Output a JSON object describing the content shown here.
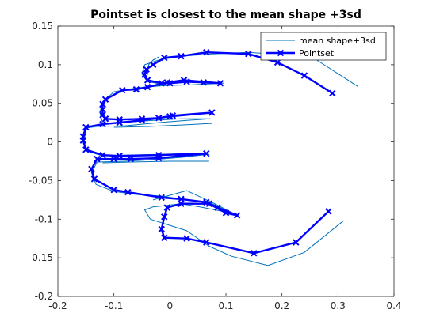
{
  "chart_data": {
    "type": "line",
    "title": "Pointset is closest to the mean shape +3sd",
    "xlabel": "",
    "ylabel": "",
    "xlim": [
      -0.2,
      0.4
    ],
    "ylim": [
      -0.2,
      0.15
    ],
    "x_ticks": [
      -0.2,
      -0.1,
      0,
      0.1,
      0.2,
      0.3,
      0.4
    ],
    "x_tick_labels": [
      "-0.2",
      "-0.1",
      "0",
      "0.1",
      "0.2",
      "0.3",
      "0.4"
    ],
    "y_ticks": [
      -0.2,
      -0.15,
      -0.1,
      -0.05,
      0,
      0.05,
      0.1,
      0.15
    ],
    "y_tick_labels": [
      "-0.2",
      "-0.15",
      "-0.1",
      "-0.05",
      "0",
      "0.05",
      "0.1",
      "0.15"
    ],
    "grid": false,
    "legend_position": "top-right",
    "series": [
      {
        "name": "mean shape+3sd",
        "color": "#0072BD",
        "marker": "none",
        "line_width": "thin",
        "segments": [
          [
            [
              0.335,
              0.072
            ],
            [
              0.26,
              0.107
            ],
            [
              0.2,
              0.113
            ],
            [
              0.14,
              0.116
            ],
            [
              0.075,
              0.114
            ],
            [
              0.02,
              0.111
            ],
            [
              -0.02,
              0.106
            ],
            [
              -0.045,
              0.1
            ],
            [
              -0.05,
              0.088
            ],
            [
              -0.04,
              0.078
            ],
            [
              -0.015,
              0.075
            ],
            [
              0.02,
              0.078
            ],
            [
              0.07,
              0.078
            ],
            [
              0.095,
              0.076
            ],
            [
              0.04,
              0.074
            ],
            [
              -0.01,
              0.073
            ],
            [
              -0.06,
              0.07
            ],
            [
              -0.1,
              0.065
            ],
            [
              -0.12,
              0.052
            ],
            [
              -0.125,
              0.038
            ],
            [
              -0.12,
              0.024
            ],
            [
              -0.1,
              0.024
            ],
            [
              -0.07,
              0.026
            ],
            [
              -0.03,
              0.028
            ],
            [
              0.02,
              0.03
            ],
            [
              0.072,
              0.03
            ],
            [
              0.03,
              0.028
            ],
            [
              -0.02,
              0.025
            ],
            [
              -0.08,
              0.021
            ],
            [
              -0.13,
              0.02
            ],
            [
              -0.15,
              0.018
            ],
            [
              -0.153,
              0.0
            ],
            [
              -0.148,
              -0.012
            ],
            [
              -0.12,
              -0.018
            ],
            [
              -0.08,
              -0.017
            ],
            [
              -0.02,
              -0.016
            ],
            [
              0.03,
              -0.015
            ],
            [
              0.07,
              -0.016
            ],
            [
              0.02,
              -0.02
            ],
            [
              -0.03,
              -0.023
            ],
            [
              -0.08,
              -0.025
            ],
            [
              -0.13,
              -0.026
            ],
            [
              -0.14,
              -0.04
            ],
            [
              -0.132,
              -0.055
            ],
            [
              -0.1,
              -0.064
            ],
            [
              -0.06,
              -0.068
            ],
            [
              -0.015,
              -0.07
            ],
            [
              0.03,
              -0.075
            ],
            [
              0.07,
              -0.078
            ],
            [
              0.09,
              -0.085
            ],
            [
              0.115,
              -0.093
            ],
            [
              0.06,
              -0.085
            ],
            [
              0.02,
              -0.08
            ],
            [
              -0.03,
              -0.084
            ],
            [
              -0.045,
              -0.088
            ],
            [
              -0.035,
              -0.1
            ],
            [
              0.0,
              -0.108
            ],
            [
              0.03,
              -0.115
            ],
            [
              0.07,
              -0.135
            ],
            [
              0.11,
              -0.148
            ],
            [
              0.175,
              -0.16
            ],
            [
              0.24,
              -0.143
            ],
            [
              0.31,
              -0.102
            ]
          ],
          [
            [
              -0.04,
              0.087
            ],
            [
              -0.038,
              0.1
            ],
            [
              -0.03,
              0.106
            ],
            [
              -0.02,
              0.11
            ]
          ],
          [
            [
              0.075,
              0.024
            ],
            [
              0.02,
              0.022
            ],
            [
              -0.04,
              0.02
            ],
            [
              -0.1,
              0.019
            ]
          ],
          [
            [
              0.07,
              -0.025
            ],
            [
              0.0,
              -0.025
            ],
            [
              -0.07,
              -0.026
            ],
            [
              -0.12,
              -0.027
            ]
          ],
          [
            [
              0.12,
              -0.095
            ],
            [
              0.08,
              -0.08
            ],
            [
              0.03,
              -0.063
            ],
            [
              -0.03,
              -0.075
            ]
          ]
        ]
      },
      {
        "name": "Pointset",
        "color": "#0000FF",
        "marker": "x",
        "line_width": "thick",
        "points": [
          [
            0.29,
            0.063
          ],
          [
            0.24,
            0.086
          ],
          [
            0.192,
            0.103
          ],
          [
            0.14,
            0.114
          ],
          [
            0.065,
            0.116
          ],
          [
            0.02,
            0.111
          ],
          [
            -0.01,
            0.109
          ],
          [
            -0.03,
            0.1
          ],
          [
            -0.042,
            0.094
          ],
          [
            -0.045,
            0.087
          ],
          [
            -0.04,
            0.08
          ],
          [
            -0.015,
            0.076
          ],
          [
            0.0,
            0.076
          ],
          [
            0.03,
            0.078
          ],
          [
            0.06,
            0.077
          ],
          [
            0.09,
            0.076
          ],
          [
            0.025,
            0.08
          ],
          [
            -0.005,
            0.077
          ],
          [
            -0.04,
            0.071
          ],
          [
            -0.06,
            0.068
          ],
          [
            -0.085,
            0.067
          ],
          [
            -0.115,
            0.055
          ],
          [
            -0.12,
            0.049
          ],
          [
            -0.12,
            0.042
          ],
          [
            -0.12,
            0.035
          ],
          [
            -0.115,
            0.03
          ],
          [
            -0.09,
            0.029
          ],
          [
            -0.05,
            0.03
          ],
          [
            -0.02,
            0.031
          ],
          [
            0.005,
            0.034
          ],
          [
            0.075,
            0.038
          ],
          [
            0.0,
            0.033
          ],
          [
            -0.05,
            0.028
          ],
          [
            -0.09,
            0.025
          ],
          [
            -0.12,
            0.023
          ],
          [
            -0.15,
            0.019
          ],
          [
            -0.155,
            0.007
          ],
          [
            -0.155,
            0.002
          ],
          [
            -0.15,
            -0.01
          ],
          [
            -0.12,
            -0.017
          ],
          [
            -0.09,
            -0.018
          ],
          [
            -0.02,
            -0.017
          ],
          [
            0.065,
            -0.015
          ],
          [
            -0.02,
            -0.021
          ],
          [
            -0.07,
            -0.022
          ],
          [
            -0.1,
            -0.022
          ],
          [
            -0.13,
            -0.022
          ],
          [
            -0.14,
            -0.035
          ],
          [
            -0.135,
            -0.048
          ],
          [
            -0.1,
            -0.062
          ],
          [
            -0.075,
            -0.065
          ],
          [
            -0.015,
            -0.072
          ],
          [
            0.02,
            -0.074
          ],
          [
            0.065,
            -0.078
          ],
          [
            0.085,
            -0.085
          ],
          [
            0.12,
            -0.095
          ],
          [
            0.1,
            -0.092
          ],
          [
            0.07,
            -0.08
          ],
          [
            0.02,
            -0.08
          ],
          [
            -0.005,
            -0.085
          ],
          [
            -0.01,
            -0.097
          ],
          [
            -0.015,
            -0.113
          ],
          [
            -0.01,
            -0.124
          ],
          [
            0.03,
            -0.125
          ],
          [
            0.065,
            -0.13
          ],
          [
            0.15,
            -0.144
          ],
          [
            0.225,
            -0.13
          ],
          [
            0.283,
            -0.09
          ]
        ]
      }
    ]
  }
}
